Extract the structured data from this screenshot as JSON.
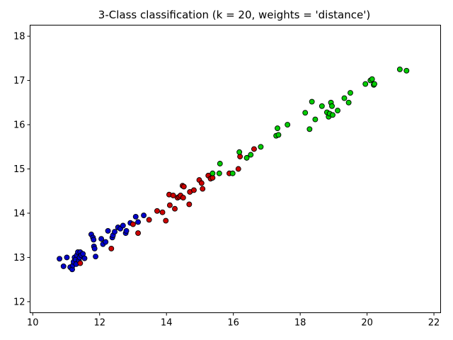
{
  "chart_data": {
    "type": "scatter",
    "title": "3-Class classification (k = 20, weights = 'distance')",
    "xlabel": "",
    "ylabel": "",
    "xlim": [
      9.92,
      22.2
    ],
    "ylim": [
      11.75,
      18.25
    ],
    "xticks": [
      "10",
      "12",
      "14",
      "16",
      "18",
      "20",
      "22"
    ],
    "yticks": [
      "12",
      "13",
      "14",
      "15",
      "16",
      "17",
      "18"
    ],
    "grid": false,
    "legend": "none",
    "series": [
      {
        "color": "#0000cc",
        "points": [
          [
            10.8,
            12.97
          ],
          [
            10.92,
            12.8
          ],
          [
            11.02,
            13.0
          ],
          [
            11.12,
            12.78
          ],
          [
            11.18,
            12.73
          ],
          [
            11.2,
            12.82
          ],
          [
            11.22,
            12.9
          ],
          [
            11.25,
            13.0
          ],
          [
            11.28,
            12.95
          ],
          [
            11.3,
            12.85
          ],
          [
            11.32,
            13.05
          ],
          [
            11.35,
            13.12
          ],
          [
            11.38,
            12.93
          ],
          [
            11.4,
            13.0
          ],
          [
            11.42,
            13.12
          ],
          [
            11.45,
            13.05
          ],
          [
            11.5,
            13.08
          ],
          [
            11.55,
            12.98
          ],
          [
            11.75,
            13.52
          ],
          [
            11.8,
            13.45
          ],
          [
            11.82,
            13.4
          ],
          [
            11.83,
            13.25
          ],
          [
            11.85,
            13.2
          ],
          [
            11.88,
            13.02
          ],
          [
            12.05,
            13.42
          ],
          [
            12.1,
            13.3
          ],
          [
            12.18,
            13.35
          ],
          [
            12.25,
            13.6
          ],
          [
            12.38,
            13.45
          ],
          [
            12.4,
            13.5
          ],
          [
            12.45,
            13.58
          ],
          [
            12.55,
            13.68
          ],
          [
            12.62,
            13.65
          ],
          [
            12.7,
            13.72
          ],
          [
            12.78,
            13.55
          ],
          [
            12.8,
            13.6
          ],
          [
            12.92,
            13.78
          ],
          [
            13.08,
            13.92
          ],
          [
            13.15,
            13.8
          ],
          [
            13.32,
            13.95
          ]
        ]
      },
      {
        "color": "#cc0000",
        "points": [
          [
            11.42,
            12.87
          ],
          [
            12.35,
            13.2
          ],
          [
            13.0,
            13.75
          ],
          [
            13.15,
            13.55
          ],
          [
            13.48,
            13.85
          ],
          [
            13.72,
            14.05
          ],
          [
            13.88,
            14.02
          ],
          [
            13.98,
            13.83
          ],
          [
            14.08,
            14.42
          ],
          [
            14.1,
            14.18
          ],
          [
            14.2,
            14.4
          ],
          [
            14.25,
            14.1
          ],
          [
            14.33,
            14.35
          ],
          [
            14.38,
            14.37
          ],
          [
            14.42,
            14.4
          ],
          [
            14.48,
            14.62
          ],
          [
            14.5,
            14.35
          ],
          [
            14.52,
            14.6
          ],
          [
            14.68,
            14.2
          ],
          [
            14.7,
            14.48
          ],
          [
            14.82,
            14.52
          ],
          [
            14.98,
            14.75
          ],
          [
            15.05,
            14.68
          ],
          [
            15.08,
            14.55
          ],
          [
            15.25,
            14.85
          ],
          [
            15.32,
            14.78
          ],
          [
            15.38,
            14.8
          ],
          [
            15.88,
            14.9
          ],
          [
            16.15,
            15.0
          ],
          [
            16.2,
            15.28
          ],
          [
            16.62,
            15.45
          ]
        ]
      },
      {
        "color": "#00cc00",
        "points": [
          [
            15.38,
            14.9
          ],
          [
            15.58,
            14.9
          ],
          [
            15.6,
            15.12
          ],
          [
            15.98,
            14.9
          ],
          [
            16.18,
            15.38
          ],
          [
            16.4,
            15.25
          ],
          [
            16.52,
            15.32
          ],
          [
            16.82,
            15.5
          ],
          [
            17.28,
            15.75
          ],
          [
            17.32,
            15.92
          ],
          [
            17.35,
            15.77
          ],
          [
            17.62,
            16.0
          ],
          [
            18.15,
            16.27
          ],
          [
            18.28,
            15.9
          ],
          [
            18.35,
            16.52
          ],
          [
            18.45,
            16.12
          ],
          [
            18.65,
            16.42
          ],
          [
            18.8,
            16.28
          ],
          [
            18.85,
            16.18
          ],
          [
            18.88,
            16.25
          ],
          [
            18.92,
            16.5
          ],
          [
            18.95,
            16.42
          ],
          [
            18.97,
            16.22
          ],
          [
            19.12,
            16.32
          ],
          [
            19.32,
            16.6
          ],
          [
            19.45,
            16.5
          ],
          [
            19.5,
            16.72
          ],
          [
            19.95,
            16.92
          ],
          [
            20.1,
            17.0
          ],
          [
            20.15,
            17.03
          ],
          [
            20.2,
            16.9
          ],
          [
            20.22,
            16.92
          ],
          [
            20.98,
            17.25
          ],
          [
            21.18,
            17.22
          ]
        ]
      }
    ]
  }
}
